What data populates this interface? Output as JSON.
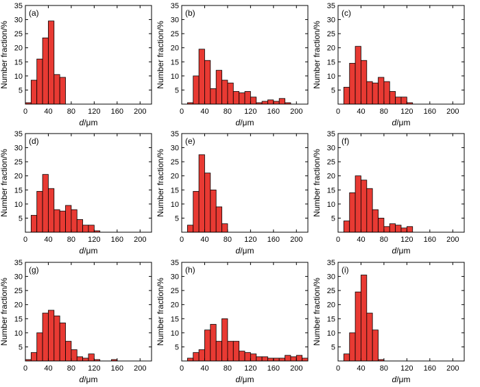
{
  "figure": {
    "xlabel_italic": "d",
    "xlabel_unit": "/μm",
    "ylabel": "Number fraction/%"
  },
  "chart_data": [
    {
      "type": "bar",
      "panel_label": "(a)",
      "xlabel": "d/μm",
      "ylabel": "Number fraction/%",
      "xlim": [
        0,
        220
      ],
      "ylim": [
        0,
        35
      ],
      "xticks": [
        0,
        40,
        80,
        120,
        160,
        200
      ],
      "yticks": [
        5,
        10,
        15,
        20,
        25,
        30,
        35
      ],
      "bin_width": 10,
      "bin_starts": [
        0,
        10,
        20,
        30,
        40,
        50,
        60
      ],
      "values": [
        0.5,
        8.5,
        16,
        23.5,
        29.5,
        10.5,
        9.5
      ],
      "bar_color": "#e83a33"
    },
    {
      "type": "bar",
      "panel_label": "(b)",
      "xlabel": "d/μm",
      "ylabel": "Number fraction/%",
      "xlim": [
        0,
        220
      ],
      "ylim": [
        0,
        35
      ],
      "xticks": [
        0,
        40,
        80,
        120,
        160,
        200
      ],
      "yticks": [
        5,
        10,
        15,
        20,
        25,
        30,
        35
      ],
      "bin_width": 10,
      "bin_starts": [
        10,
        20,
        30,
        40,
        50,
        60,
        70,
        80,
        90,
        100,
        110,
        120,
        130,
        140,
        150,
        160,
        170,
        180
      ],
      "values": [
        0.5,
        10,
        19.5,
        15.5,
        5.5,
        12,
        8.5,
        7.5,
        4.5,
        4,
        4.5,
        2.5,
        0.5,
        1,
        1.5,
        1,
        2,
        0.5
      ],
      "bar_color": "#e83a33"
    },
    {
      "type": "bar",
      "panel_label": "(c)",
      "xlabel": "d/μm",
      "ylabel": "Number fraction/%",
      "xlim": [
        0,
        220
      ],
      "ylim": [
        0,
        35
      ],
      "xticks": [
        0,
        40,
        80,
        120,
        160,
        200
      ],
      "yticks": [
        5,
        10,
        15,
        20,
        25,
        30,
        35
      ],
      "bin_width": 10,
      "bin_starts": [
        10,
        20,
        30,
        40,
        50,
        60,
        70,
        80,
        90,
        100,
        110,
        120
      ],
      "values": [
        6,
        14.5,
        20.5,
        15.5,
        8,
        7.5,
        9.5,
        8,
        4.5,
        2.5,
        2.5,
        0.5
      ],
      "bar_color": "#e83a33"
    },
    {
      "type": "bar",
      "panel_label": "(d)",
      "xlabel": "d/μm",
      "ylabel": "Number fraction/%",
      "xlim": [
        0,
        220
      ],
      "ylim": [
        0,
        35
      ],
      "xticks": [
        0,
        40,
        80,
        120,
        160,
        200
      ],
      "yticks": [
        5,
        10,
        15,
        20,
        25,
        30,
        35
      ],
      "bin_width": 10,
      "bin_starts": [
        10,
        20,
        30,
        40,
        50,
        60,
        70,
        80,
        90,
        100,
        110,
        120
      ],
      "values": [
        6,
        14.5,
        20.5,
        15.5,
        8,
        7.5,
        9.5,
        8,
        4.5,
        2.5,
        2.5,
        0.5
      ],
      "bar_color": "#e83a33"
    },
    {
      "type": "bar",
      "panel_label": "(e)",
      "xlabel": "d/μm",
      "ylabel": "Number fraction/%",
      "xlim": [
        0,
        220
      ],
      "ylim": [
        0,
        35
      ],
      "xticks": [
        0,
        40,
        80,
        120,
        160,
        200
      ],
      "yticks": [
        5,
        10,
        15,
        20,
        25,
        30,
        35
      ],
      "bin_width": 10,
      "bin_starts": [
        10,
        20,
        30,
        40,
        50,
        60,
        70
      ],
      "values": [
        2.5,
        14.5,
        27.5,
        21,
        15,
        9,
        3
      ],
      "bar_color": "#e83a33"
    },
    {
      "type": "bar",
      "panel_label": "(f)",
      "xlabel": "d/μm",
      "ylabel": "Number fraction/%",
      "xlim": [
        0,
        220
      ],
      "ylim": [
        0,
        35
      ],
      "xticks": [
        0,
        40,
        80,
        120,
        160,
        200
      ],
      "yticks": [
        5,
        10,
        15,
        20,
        25,
        30,
        35
      ],
      "bin_width": 10,
      "bin_starts": [
        10,
        20,
        30,
        40,
        50,
        60,
        70,
        80,
        90,
        100,
        110,
        120
      ],
      "values": [
        4,
        14,
        20,
        18.5,
        15.5,
        8,
        5,
        2,
        3,
        2.5,
        1.5,
        2
      ],
      "bar_color": "#e83a33"
    },
    {
      "type": "bar",
      "panel_label": "(g)",
      "xlabel": "d/μm",
      "ylabel": "Number fraction/%",
      "xlim": [
        0,
        220
      ],
      "ylim": [
        0,
        35
      ],
      "xticks": [
        0,
        40,
        80,
        120,
        160,
        200
      ],
      "yticks": [
        5,
        10,
        15,
        20,
        25,
        30,
        35
      ],
      "bin_width": 10,
      "bin_starts": [
        0,
        10,
        20,
        30,
        40,
        50,
        60,
        70,
        80,
        90,
        100,
        110,
        120,
        150
      ],
      "values": [
        0.5,
        3,
        10,
        17,
        18,
        16,
        13.5,
        7,
        4,
        1.5,
        1,
        2.5,
        0.5,
        0.5
      ],
      "bar_color": "#e83a33"
    },
    {
      "type": "bar",
      "panel_label": "(h)",
      "xlabel": "d/μm",
      "ylabel": "Number fraction/%",
      "xlim": [
        0,
        220
      ],
      "ylim": [
        0,
        35
      ],
      "xticks": [
        0,
        40,
        80,
        120,
        160,
        200
      ],
      "yticks": [
        5,
        10,
        15,
        20,
        25,
        30,
        35
      ],
      "bin_width": 10,
      "bin_starts": [
        10,
        20,
        30,
        40,
        50,
        60,
        70,
        80,
        90,
        100,
        110,
        120,
        130,
        140,
        150,
        160,
        170,
        180,
        190,
        200,
        210
      ],
      "values": [
        1,
        3,
        4,
        11,
        13,
        7,
        15,
        7,
        7,
        3.5,
        3,
        2.5,
        1.5,
        1.5,
        1,
        1,
        1,
        2,
        1.5,
        2,
        1
      ],
      "bar_color": "#e83a33"
    },
    {
      "type": "bar",
      "panel_label": "(i)",
      "xlabel": "d/μm",
      "ylabel": "Number fraction/%",
      "xlim": [
        0,
        220
      ],
      "ylim": [
        0,
        35
      ],
      "xticks": [
        0,
        40,
        80,
        120,
        160,
        200
      ],
      "yticks": [
        5,
        10,
        15,
        20,
        25,
        30,
        35
      ],
      "bin_width": 10,
      "bin_starts": [
        10,
        20,
        30,
        40,
        50,
        60,
        70
      ],
      "values": [
        2.5,
        10,
        24.5,
        30.5,
        17,
        11,
        0.5
      ],
      "bar_color": "#e83a33"
    }
  ]
}
